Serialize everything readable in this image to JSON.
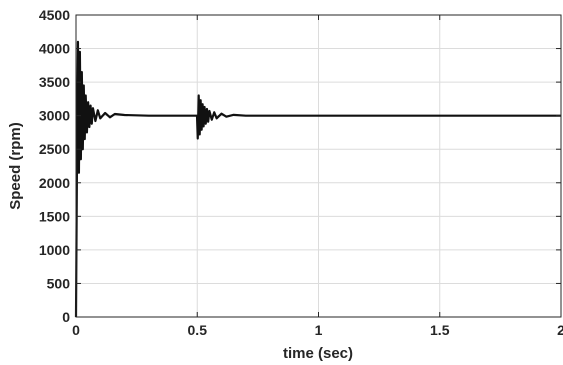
{
  "chart_data": {
    "type": "line",
    "title": "",
    "xlabel": "time (sec)",
    "ylabel": "Speed (rpm)",
    "xlim": [
      0,
      2
    ],
    "ylim": [
      0,
      4500
    ],
    "x_ticks": [
      0,
      0.5,
      1,
      1.5,
      2
    ],
    "x_tick_labels": [
      "0",
      "0.5",
      "1",
      "1.5",
      "2"
    ],
    "y_ticks": [
      0,
      500,
      1000,
      1500,
      2000,
      2500,
      3000,
      3500,
      4000,
      4500
    ],
    "y_tick_labels": [
      "0",
      "500",
      "1000",
      "1500",
      "2000",
      "2500",
      "3000",
      "3500",
      "4000",
      "4500"
    ],
    "grid": true,
    "legend": "none",
    "series": [
      {
        "color": "#111111",
        "steady_state": 3000,
        "x": [
          0,
          0.004,
          0.008,
          0.012,
          0.016,
          0.02,
          0.024,
          0.028,
          0.032,
          0.036,
          0.04,
          0.045,
          0.05,
          0.055,
          0.06,
          0.065,
          0.07,
          0.08,
          0.09,
          0.1,
          0.12,
          0.14,
          0.16,
          0.2,
          0.3,
          0.4,
          0.499,
          0.502,
          0.506,
          0.51,
          0.514,
          0.518,
          0.522,
          0.526,
          0.53,
          0.535,
          0.54,
          0.545,
          0.55,
          0.56,
          0.57,
          0.58,
          0.6,
          0.62,
          0.65,
          0.7,
          1.0,
          1.5,
          2.0
        ],
        "y": [
          0,
          2300,
          4100,
          2150,
          3950,
          2350,
          3650,
          2500,
          3450,
          2650,
          3300,
          2750,
          3200,
          2830,
          3150,
          2880,
          3110,
          2920,
          3080,
          2960,
          3040,
          2975,
          3025,
          3010,
          3000,
          3000,
          3000,
          2660,
          3300,
          2720,
          3230,
          2790,
          3170,
          2840,
          3130,
          2880,
          3100,
          2910,
          3070,
          2940,
          3050,
          2960,
          3030,
          2985,
          3012,
          3000,
          3000,
          3000,
          3000
        ]
      }
    ]
  }
}
